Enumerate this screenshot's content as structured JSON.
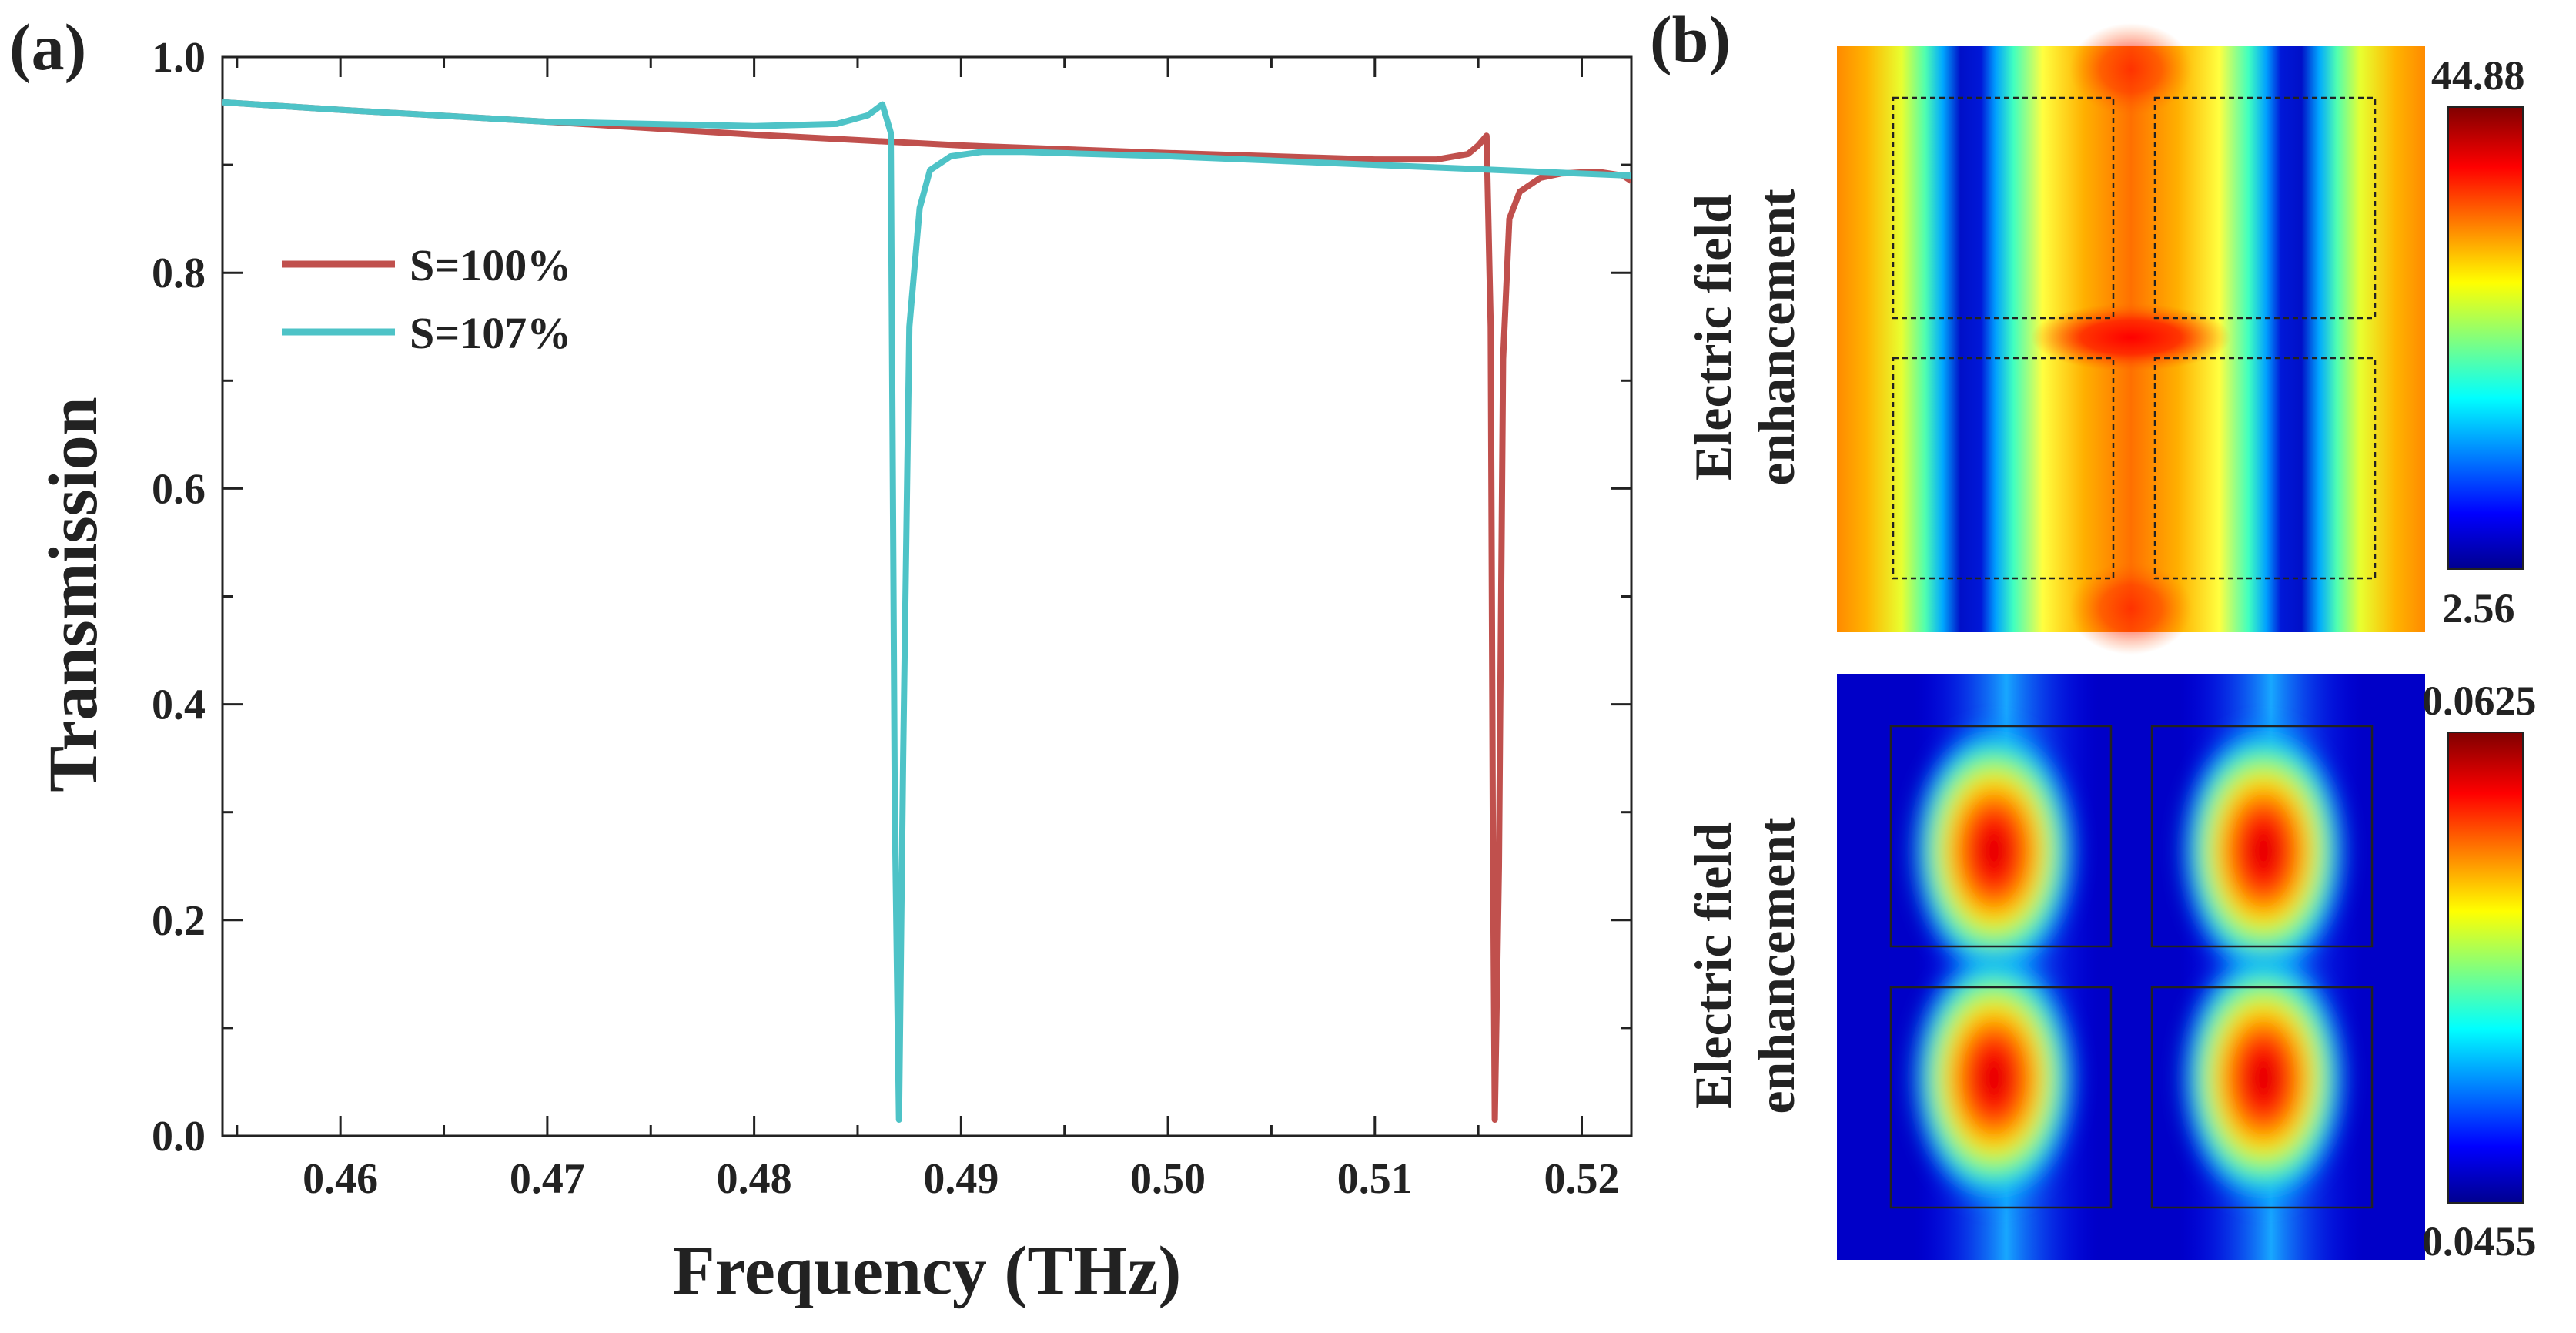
{
  "figure": {
    "panel_a_label": "(a)",
    "panel_b_label": "(b)"
  },
  "chart_data": [
    {
      "type": "line",
      "panel": "(a)",
      "xlabel": "Frequency (THz)",
      "ylabel": "Transmission",
      "xlim": [
        0.4543,
        0.5224
      ],
      "ylim": [
        0.0,
        1.0
      ],
      "x_ticks": [
        0.46,
        0.47,
        0.48,
        0.49,
        0.5,
        0.51,
        0.52
      ],
      "x_tick_labels": [
        "0.46",
        "0.47",
        "0.48",
        "0.49",
        "0.50",
        "0.51",
        "0.52"
      ],
      "y_ticks": [
        0.0,
        0.2,
        0.4,
        0.6,
        0.8,
        1.0
      ],
      "y_tick_labels": [
        "0.0",
        "0.2",
        "0.4",
        "0.6",
        "0.8",
        "1.0"
      ],
      "legend_position": "left",
      "series": [
        {
          "name": "S=100%",
          "color": "#c0504d",
          "x": [
            0.4543,
            0.46,
            0.47,
            0.48,
            0.49,
            0.5,
            0.51,
            0.513,
            0.5145,
            0.515,
            0.5154,
            0.5156,
            0.5157,
            0.5158,
            0.516,
            0.5162,
            0.5165,
            0.517,
            0.518,
            0.519,
            0.52,
            0.521,
            0.522,
            0.5224
          ],
          "y": [
            0.958,
            0.951,
            0.94,
            0.928,
            0.918,
            0.911,
            0.905,
            0.905,
            0.91,
            0.918,
            0.927,
            0.75,
            0.3,
            0.015,
            0.25,
            0.72,
            0.85,
            0.875,
            0.888,
            0.892,
            0.893,
            0.893,
            0.89,
            0.885
          ]
        },
        {
          "name": "S=107%",
          "color": "#4ec3c7",
          "x": [
            0.4543,
            0.46,
            0.47,
            0.48,
            0.484,
            0.4855,
            0.4862,
            0.4866,
            0.4868,
            0.487,
            0.4872,
            0.4875,
            0.488,
            0.4885,
            0.4895,
            0.491,
            0.493,
            0.5,
            0.51,
            0.5224
          ],
          "y": [
            0.958,
            0.951,
            0.94,
            0.936,
            0.938,
            0.946,
            0.956,
            0.93,
            0.3,
            0.015,
            0.35,
            0.75,
            0.86,
            0.895,
            0.908,
            0.912,
            0.912,
            0.908,
            0.9,
            0.89
          ]
        }
      ]
    },
    {
      "type": "heatmap",
      "panel": "(b) top",
      "ylabel_line1": "Electric field",
      "ylabel_line2": "enhancement",
      "colorbar_max": "44.88",
      "colorbar_min": "2.56"
    },
    {
      "type": "heatmap",
      "panel": "(b) bottom",
      "ylabel_line1": "Electric field",
      "ylabel_line2": "enhancement",
      "colorbar_max": "0.0625",
      "colorbar_min": "0.0455"
    }
  ],
  "colors": {
    "axis": "#222222",
    "jet_dark_red": "#800000",
    "jet_red": "#ff0000",
    "jet_orange": "#ff8c00",
    "jet_yellow": "#ffff00",
    "jet_cyan": "#00ffff",
    "jet_blue": "#0000ff",
    "jet_dark_blue": "#00008f"
  }
}
